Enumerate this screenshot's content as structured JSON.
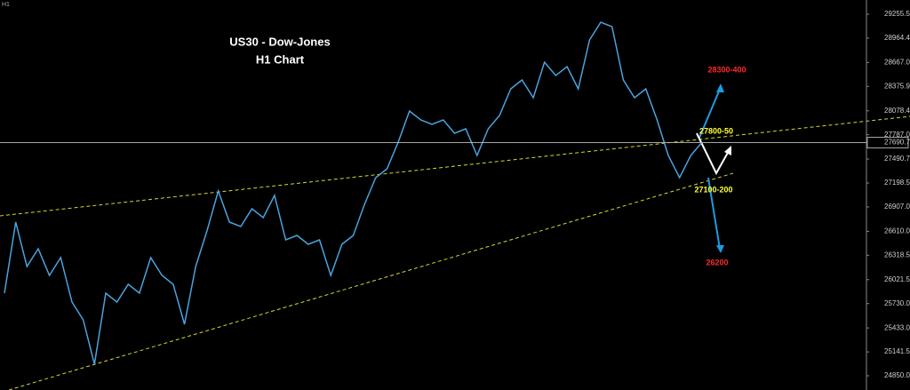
{
  "chart_data": {
    "type": "line",
    "corner_label": "H1",
    "title": "US30 - Dow-Jones",
    "subtitle": "H1 Chart",
    "color": "#4aa3df",
    "values": [
      25856.8,
      26722.7,
      26181.5,
      26398,
      26073.2,
      26289.7,
      25748.5,
      25532,
      24990.8,
      25856.8,
      25748.5,
      25965,
      25856.8,
      26289.7,
      26073.2,
      25965,
      25477.9,
      26181.5,
      26614.5,
      27101.5,
      26722.7,
      26668.5,
      26885,
      26776.8,
      27047.5,
      26506.2,
      26560.3,
      26452.1,
      26506.2,
      26073.2,
      26452.1,
      26560.3,
      26939.2,
      27263.9,
      27372.1,
      27696.8,
      28075.7,
      27967.5,
      27913.3,
      27967.5,
      27805.1,
      27859.2,
      27534.5,
      27859.2,
      28021.6,
      28346.3,
      28454.5,
      28238,
      28671,
      28508.6,
      28616.9,
      28346.3,
      28941.6,
      29158.1,
      29104,
      28454.5,
      28238,
      28346.3,
      27967.5,
      27534.5,
      27263.9,
      27534.5,
      27696.8
    ],
    "current_price": 27690.7,
    "ylim": [
      24676.9,
      29428.6
    ],
    "yticks": [
      29255.5,
      28964.4,
      {
        "value": 28667,
        "label": "28667.0"
      },
      28375.9,
      28078.4,
      {
        "value": 27787,
        "label": "27787.0"
      },
      27490.7,
      27198.5,
      {
        "value": 26907,
        "label": "26907.0"
      },
      {
        "value": 26610,
        "label": "26610.0"
      },
      26318.5,
      26021.5,
      {
        "value": 25730,
        "label": "25730.0"
      },
      {
        "value": 25433,
        "label": "25433.0"
      },
      25141.5,
      {
        "value": 24850,
        "label": "24850.0"
      }
    ],
    "annotations": [
      "28300-400",
      "27800-50",
      "27100-200",
      "26200"
    ]
  }
}
